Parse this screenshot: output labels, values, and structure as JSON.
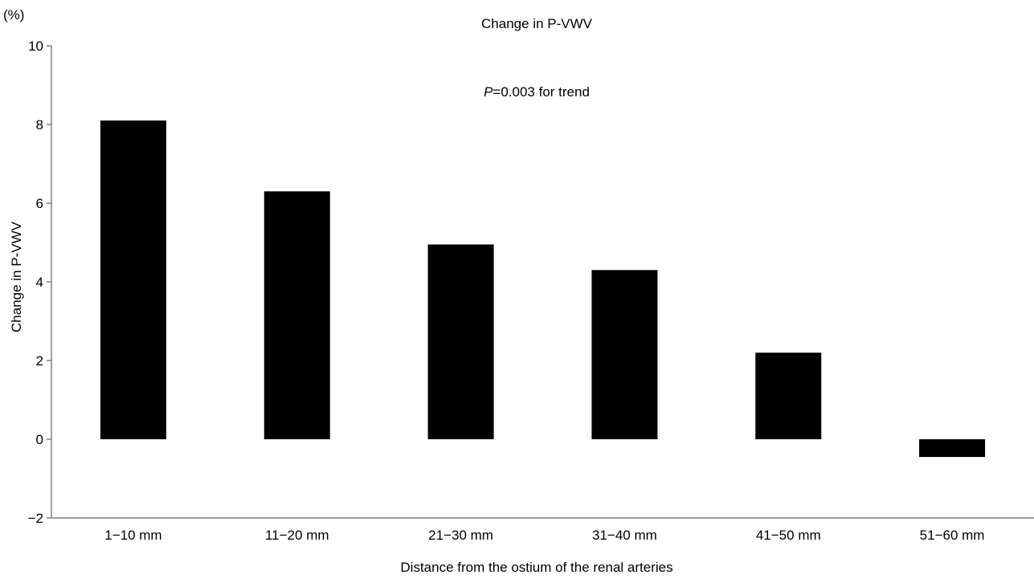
{
  "chart_data": {
    "type": "bar",
    "title": "Change in P-VWV",
    "unit_label": "(%)",
    "annotation": {
      "italic": "P",
      "rest": "=0.003 for trend"
    },
    "xlabel": "Distance from the ostium of the renal arteries",
    "ylabel": "Change in P-VWV",
    "categories": [
      "1−10 mm",
      "11−20 mm",
      "21−30 mm",
      "31−40 mm",
      "41−50 mm",
      "51−60 mm"
    ],
    "values": [
      8.1,
      6.3,
      4.95,
      4.3,
      2.2,
      -0.45
    ],
    "ylim": [
      -2,
      10
    ],
    "yticks": [
      -2,
      0,
      2,
      4,
      6,
      8,
      10
    ],
    "ytick_labels": [
      "−2",
      "0",
      "2",
      "4",
      "6",
      "8",
      "10"
    ],
    "grid": false,
    "legend": "none",
    "colors": {
      "bar": "#000000",
      "axis": "#808080",
      "text": "#000000"
    }
  }
}
